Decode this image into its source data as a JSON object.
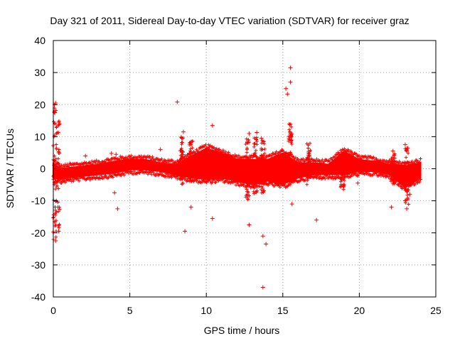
{
  "chart_data": {
    "type": "scatter",
    "title": "Day 321 of 2011, Sidereal Day-to-day VTEC variation (SDTVAR) for receiver graz",
    "xlabel": "GPS time / hours",
    "ylabel": "SDTVAR / TECUs",
    "xlim": [
      0,
      25
    ],
    "ylim": [
      -40,
      40
    ],
    "xticks": [
      0,
      5,
      10,
      15,
      20,
      25
    ],
    "yticks": [
      -40,
      -30,
      -20,
      -10,
      0,
      10,
      20,
      30,
      40
    ],
    "grid": true,
    "marker": "+",
    "color": "#ff0000",
    "data_range_hours": [
      0,
      24
    ],
    "band_envelope": [
      {
        "x": 0.0,
        "lo": -3.0,
        "hi": 2.0
      },
      {
        "x": 0.5,
        "lo": -3.5,
        "hi": 0.0
      },
      {
        "x": 1.0,
        "lo": -3.0,
        "hi": 0.5
      },
      {
        "x": 2.0,
        "lo": -2.5,
        "hi": 1.0
      },
      {
        "x": 3.0,
        "lo": -2.0,
        "hi": 1.5
      },
      {
        "x": 4.0,
        "lo": -1.5,
        "hi": 2.5
      },
      {
        "x": 5.0,
        "lo": -0.5,
        "hi": 3.0
      },
      {
        "x": 6.0,
        "lo": -0.5,
        "hi": 3.0
      },
      {
        "x": 7.0,
        "lo": -1.0,
        "hi": 2.0
      },
      {
        "x": 8.0,
        "lo": -2.0,
        "hi": 1.5
      },
      {
        "x": 9.0,
        "lo": -3.0,
        "hi": 4.0
      },
      {
        "x": 10.0,
        "lo": -3.5,
        "hi": 6.5
      },
      {
        "x": 11.0,
        "lo": -3.0,
        "hi": 5.0
      },
      {
        "x": 12.0,
        "lo": -4.0,
        "hi": 3.0
      },
      {
        "x": 13.0,
        "lo": -5.0,
        "hi": 3.0
      },
      {
        "x": 14.0,
        "lo": -4.0,
        "hi": 3.0
      },
      {
        "x": 15.0,
        "lo": -5.0,
        "hi": 5.0
      },
      {
        "x": 16.0,
        "lo": -3.0,
        "hi": 2.0
      },
      {
        "x": 17.0,
        "lo": -2.0,
        "hi": 2.0
      },
      {
        "x": 18.0,
        "lo": -2.0,
        "hi": 1.5
      },
      {
        "x": 19.0,
        "lo": -2.0,
        "hi": 5.5
      },
      {
        "x": 20.0,
        "lo": -1.0,
        "hi": 3.0
      },
      {
        "x": 21.0,
        "lo": -1.0,
        "hi": 2.5
      },
      {
        "x": 22.0,
        "lo": -2.0,
        "hi": 1.5
      },
      {
        "x": 23.0,
        "lo": -6.0,
        "hi": 1.0
      },
      {
        "x": 24.0,
        "lo": -3.0,
        "hi": 2.0
      }
    ],
    "spikes": [
      {
        "x": 0.1,
        "lo": -23,
        "hi": 21
      },
      {
        "x": 0.3,
        "lo": -20,
        "hi": 15
      },
      {
        "x": 8.4,
        "lo": -5,
        "hi": 11
      },
      {
        "x": 9.0,
        "lo": -4,
        "hi": 9
      },
      {
        "x": 12.7,
        "lo": -10,
        "hi": 10
      },
      {
        "x": 13.2,
        "lo": -8,
        "hi": 11
      },
      {
        "x": 13.7,
        "lo": -9,
        "hi": 9
      },
      {
        "x": 15.5,
        "lo": -4,
        "hi": 14
      },
      {
        "x": 16.7,
        "lo": -5,
        "hi": 8
      },
      {
        "x": 18.9,
        "lo": -7,
        "hi": 5
      },
      {
        "x": 22.2,
        "lo": -5,
        "hi": 5
      },
      {
        "x": 23.1,
        "lo": -12,
        "hi": 7
      }
    ],
    "outliers": [
      {
        "x": 0.15,
        "y": 20.5
      },
      {
        "x": 0.1,
        "y": 17.5
      },
      {
        "x": 0.35,
        "y": 14.5
      },
      {
        "x": 0.1,
        "y": 10.5
      },
      {
        "x": 0.35,
        "y": 5.0
      },
      {
        "x": 0.1,
        "y": -16.5
      },
      {
        "x": 0.3,
        "y": -12.0
      },
      {
        "x": 0.15,
        "y": -22.5
      },
      {
        "x": 0.35,
        "y": -19.5
      },
      {
        "x": 2.1,
        "y": 4.0
      },
      {
        "x": 3.8,
        "y": 4.8
      },
      {
        "x": 4.1,
        "y": 4.5
      },
      {
        "x": 4.0,
        "y": -7.5
      },
      {
        "x": 4.2,
        "y": -12.5
      },
      {
        "x": 7.0,
        "y": 6.0
      },
      {
        "x": 8.1,
        "y": 20.8
      },
      {
        "x": 8.5,
        "y": 11.5
      },
      {
        "x": 8.6,
        "y": -19.5
      },
      {
        "x": 9.0,
        "y": -12.0
      },
      {
        "x": 10.4,
        "y": 13.5
      },
      {
        "x": 10.4,
        "y": -15.5
      },
      {
        "x": 12.8,
        "y": 11.0
      },
      {
        "x": 12.8,
        "y": -17.5
      },
      {
        "x": 13.3,
        "y": 11.3
      },
      {
        "x": 13.6,
        "y": 9.5
      },
      {
        "x": 13.7,
        "y": -21.0
      },
      {
        "x": 13.9,
        "y": -23.5
      },
      {
        "x": 13.7,
        "y": -37.0
      },
      {
        "x": 15.2,
        "y": 25.0
      },
      {
        "x": 15.3,
        "y": 23.3
      },
      {
        "x": 15.5,
        "y": 27.0
      },
      {
        "x": 15.5,
        "y": 31.5
      },
      {
        "x": 15.6,
        "y": -11.0
      },
      {
        "x": 17.2,
        "y": -16.0
      },
      {
        "x": 19.9,
        "y": -4.5
      },
      {
        "x": 22.1,
        "y": -12.0
      },
      {
        "x": 22.2,
        "y": 5.5
      },
      {
        "x": 23.0,
        "y": 7.5
      },
      {
        "x": 23.1,
        "y": 5.5
      },
      {
        "x": 23.0,
        "y": -10.0
      },
      {
        "x": 23.1,
        "y": -12.5
      },
      {
        "x": 23.3,
        "y": -8.0
      }
    ]
  }
}
